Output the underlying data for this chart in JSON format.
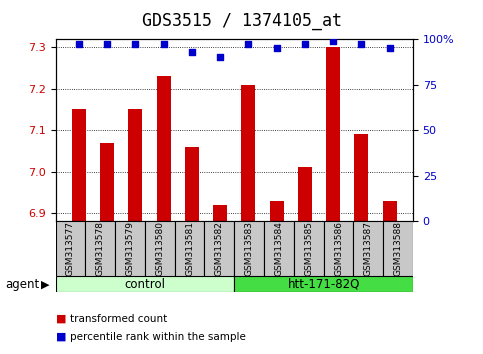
{
  "title": "GDS3515 / 1374105_at",
  "samples": [
    "GSM313577",
    "GSM313578",
    "GSM313579",
    "GSM313580",
    "GSM313581",
    "GSM313582",
    "GSM313583",
    "GSM313584",
    "GSM313585",
    "GSM313586",
    "GSM313587",
    "GSM313588"
  ],
  "bar_values": [
    7.15,
    7.07,
    7.15,
    7.23,
    7.06,
    6.92,
    7.21,
    6.93,
    7.01,
    7.3,
    7.09,
    6.93
  ],
  "percentile_values": [
    97,
    97,
    97,
    97,
    93,
    90,
    97,
    95,
    97,
    99,
    97,
    95
  ],
  "ylim_left": [
    6.88,
    7.32
  ],
  "ylim_right": [
    0,
    100
  ],
  "yticks_left": [
    6.9,
    7.0,
    7.1,
    7.2,
    7.3
  ],
  "yticks_right": [
    0,
    25,
    50,
    75,
    100
  ],
  "bar_color": "#cc0000",
  "dot_color": "#0000cc",
  "bar_bottom": 6.88,
  "groups": [
    {
      "label": "control",
      "start": 0,
      "end": 6,
      "color": "#ccffcc"
    },
    {
      "label": "htt-171-82Q",
      "start": 6,
      "end": 12,
      "color": "#44dd44"
    }
  ],
  "agent_label": "agent",
  "legend_items": [
    {
      "color": "#cc0000",
      "label": "transformed count"
    },
    {
      "color": "#0000cc",
      "label": "percentile rank within the sample"
    }
  ],
  "title_fontsize": 12,
  "tick_fontsize": 8,
  "label_fontsize": 8
}
